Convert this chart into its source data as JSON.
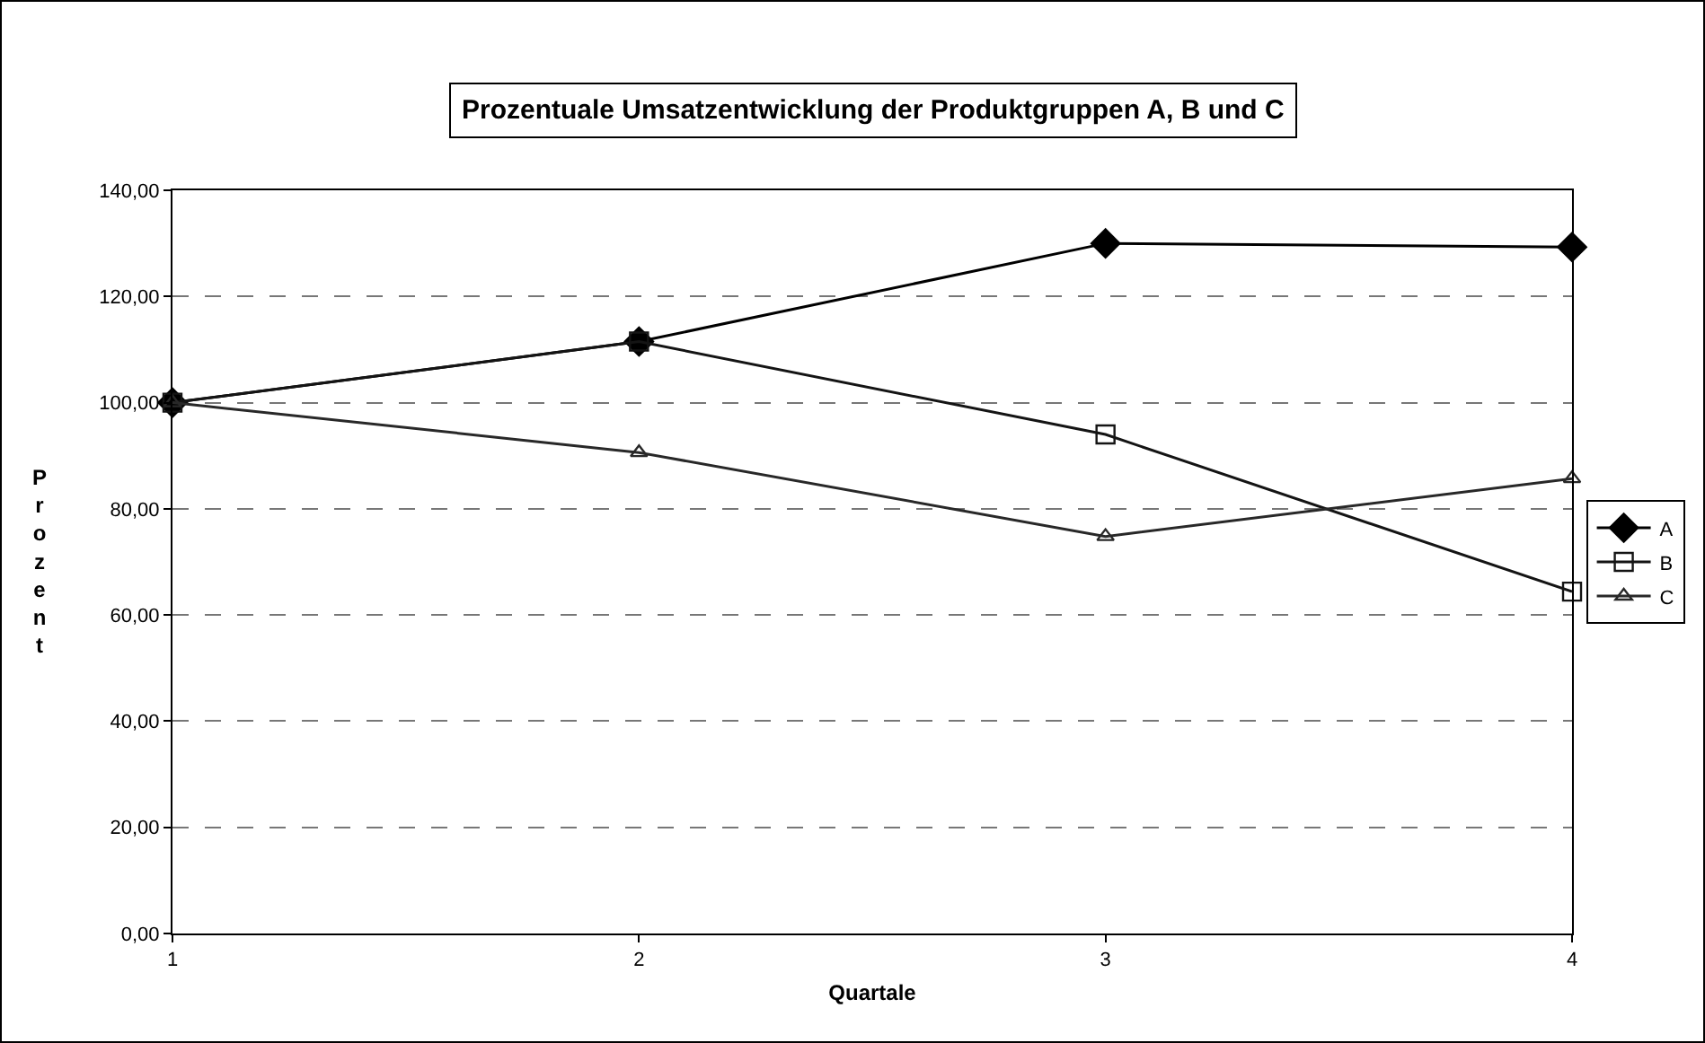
{
  "chart_data": {
    "type": "line",
    "title": "Prozentuale Umsatzentwicklung der Produktgruppen A, B und C",
    "xlabel": "Quartale",
    "ylabel": "Prozent",
    "x": [
      1,
      2,
      3,
      4
    ],
    "series": [
      {
        "name": "A",
        "color": "#000000",
        "marker": "diamond",
        "values": [
          100,
          111.5,
          130.0,
          129.3
        ]
      },
      {
        "name": "B",
        "color": "#141414",
        "marker": "square",
        "values": [
          100,
          111.5,
          94.0,
          64.4
        ]
      },
      {
        "name": "C",
        "color": "#282828",
        "marker": "triangle",
        "values": [
          100,
          90.6,
          74.8,
          85.7
        ]
      }
    ],
    "xlim": [
      1,
      4
    ],
    "xticks": [
      1,
      2,
      3,
      4
    ],
    "ylim": [
      0,
      140
    ],
    "yticks": [
      {
        "value": 0,
        "label": "0,00"
      },
      {
        "value": 20,
        "label": "20,00"
      },
      {
        "value": 40,
        "label": "40,00"
      },
      {
        "value": 60,
        "label": "60,00"
      },
      {
        "value": 80,
        "label": "80,00"
      },
      {
        "value": 100,
        "label": "100,00"
      },
      {
        "value": 120,
        "label": "120,00"
      },
      {
        "value": 140,
        "label": "140,00"
      }
    ],
    "grid": "y",
    "legend": "right",
    "line_style": "solid"
  }
}
